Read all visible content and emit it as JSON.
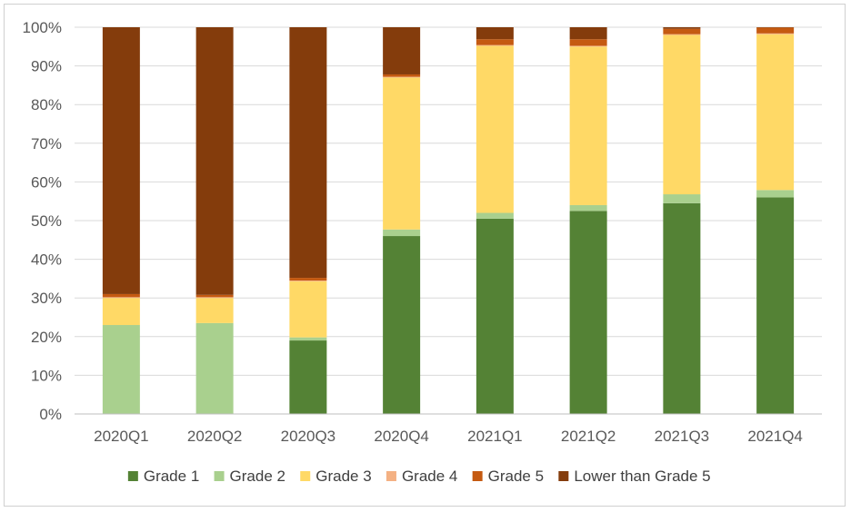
{
  "chart_data": {
    "type": "bar",
    "stacked": true,
    "percent_stacked": true,
    "categories": [
      "2020Q1",
      "2020Q2",
      "2020Q3",
      "2020Q4",
      "2021Q1",
      "2021Q2",
      "2021Q3",
      "2021Q4"
    ],
    "ylim": [
      0,
      100
    ],
    "y_ticks": [
      "0%",
      "10%",
      "20%",
      "30%",
      "40%",
      "50%",
      "60%",
      "70%",
      "80%",
      "90%",
      "100%"
    ],
    "grid": true,
    "legend_position": "bottom",
    "series": [
      {
        "name": "Grade 1",
        "color": "#548235",
        "values": [
          0,
          0,
          19,
          46,
          50.5,
          52.5,
          54.5,
          56
        ]
      },
      {
        "name": "Grade 2",
        "color": "#a9d08e",
        "values": [
          23,
          23.5,
          0.8,
          1.7,
          1.5,
          1.5,
          2.3,
          1.9
        ]
      },
      {
        "name": "Grade 3",
        "color": "#ffd966",
        "values": [
          7,
          6.5,
          14.5,
          39.3,
          43.2,
          41,
          41.2,
          40.3
        ]
      },
      {
        "name": "Grade 4",
        "color": "#f4b183",
        "values": [
          0.2,
          0.2,
          0.2,
          0.2,
          0.2,
          0.2,
          0.2,
          0.2
        ]
      },
      {
        "name": "Grade 5",
        "color": "#c55a11",
        "values": [
          0.8,
          0.6,
          0.7,
          0.6,
          1.5,
          1.7,
          1.4,
          1.5
        ]
      },
      {
        "name": "Lower than Grade 5",
        "color": "#843c0c",
        "values": [
          69,
          69.2,
          64.8,
          12.2,
          3.1,
          3.1,
          0.4,
          0.1
        ]
      }
    ]
  }
}
